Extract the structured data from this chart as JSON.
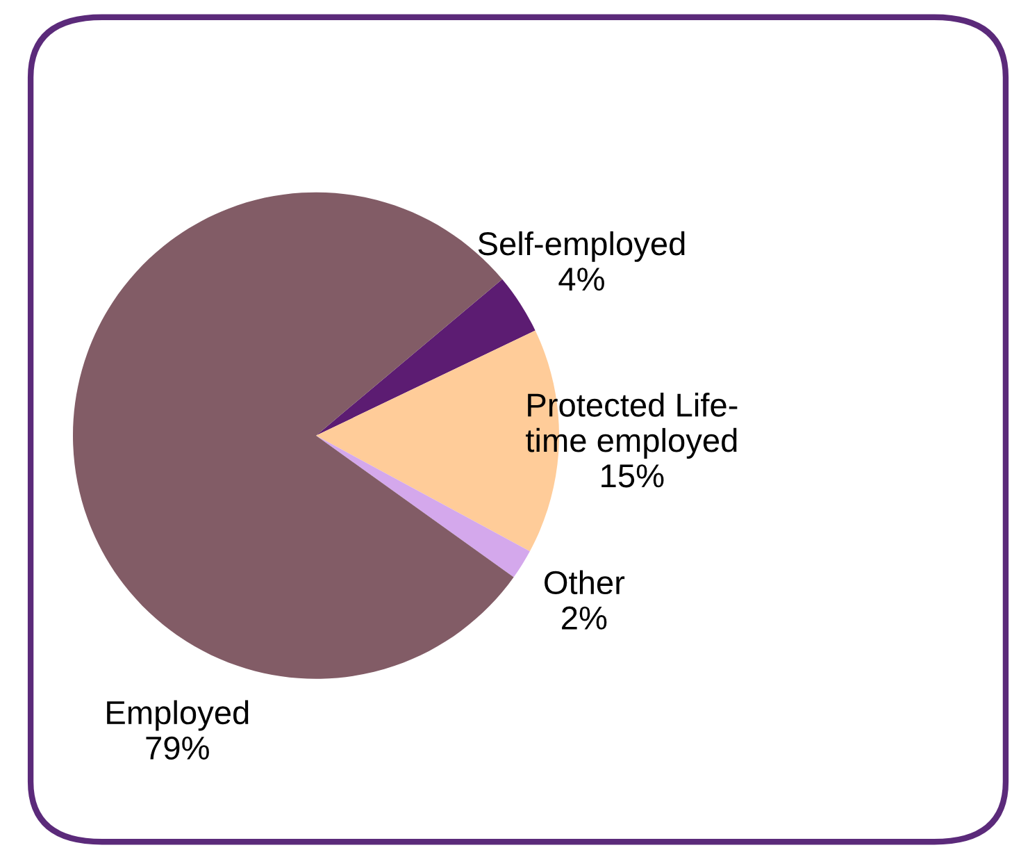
{
  "chart_data": {
    "type": "pie",
    "categories": [
      "Self-employed",
      "Protected Life-\ntime employed",
      "Other",
      "Employed"
    ],
    "values": [
      4,
      15,
      2,
      79
    ],
    "value_labels": [
      "4%",
      "15%",
      "2%",
      "79%"
    ],
    "colors": [
      "#5c1c72",
      "#ffcc99",
      "#d4a8ec",
      "#825c66"
    ]
  }
}
